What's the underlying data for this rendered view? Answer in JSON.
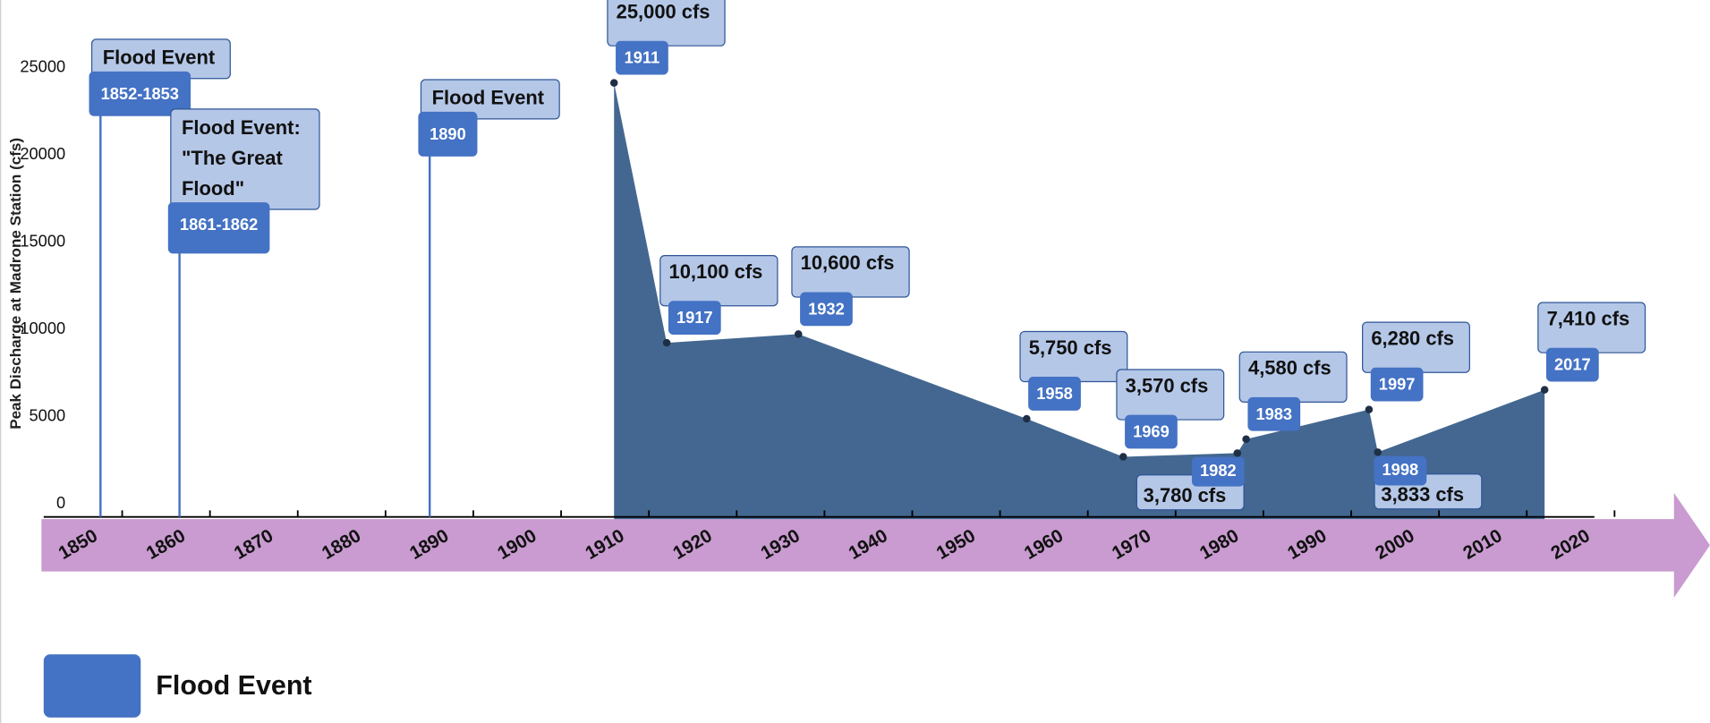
{
  "chart_data": {
    "type": "area",
    "y_label": "Peak Discharge at Madrone Station (cfs)",
    "x": [
      1911,
      1917,
      1932,
      1958,
      1969,
      1982,
      1983,
      1997,
      1998,
      2017
    ],
    "series": [
      {
        "name": "Flood Event",
        "color": "#436790",
        "legend_color": "#4472c4",
        "values": [
          25000,
          10100,
          10600,
          5750,
          3570,
          3780,
          4580,
          6280,
          3833,
          7410
        ],
        "value_labels": [
          "25,000 cfs",
          "10,100 cfs",
          "10,600 cfs",
          "5,750 cfs",
          "3,570 cfs",
          "3,780 cfs",
          "4,580 cfs",
          "6,280 cfs",
          "3,833 cfs",
          "7,410 cfs"
        ]
      }
    ],
    "events": [
      {
        "x": 1852.5,
        "label": "1852-1853",
        "text": "Flood Event"
      },
      {
        "x": 1861.5,
        "label": "1861-1862",
        "text": "Flood Event: \"The Great Flood\""
      },
      {
        "x": 1890,
        "label": "1890",
        "text": "Flood Event"
      }
    ],
    "xlim": [
      1850,
      2026
    ],
    "xticks": [
      1850,
      1860,
      1870,
      1880,
      1890,
      1900,
      1910,
      1920,
      1930,
      1940,
      1950,
      1960,
      1970,
      1980,
      1990,
      2000,
      2010,
      2020
    ],
    "ylim": [
      0,
      25000
    ],
    "yticks": [
      0,
      5000,
      10000,
      15000,
      20000,
      25000
    ]
  }
}
